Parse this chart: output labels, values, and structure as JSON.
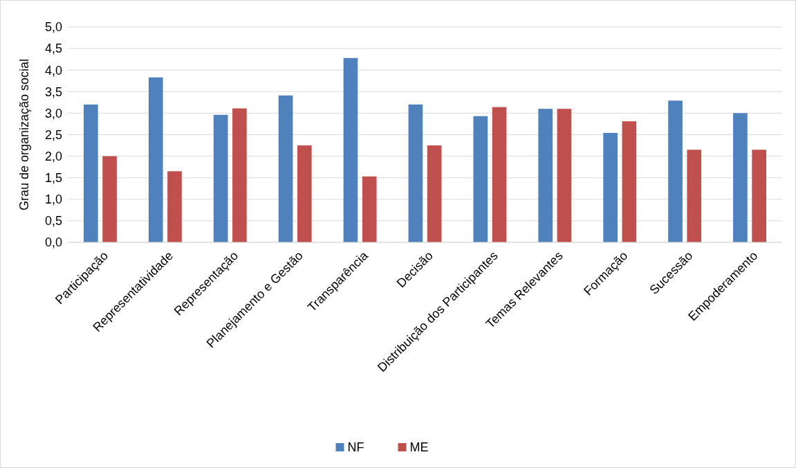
{
  "chart_data": {
    "type": "bar",
    "ylabel": "Grau de organização social",
    "categories": [
      "Participação",
      "Representatividade",
      "Representação",
      "Planejamento e Gestão",
      "Transparência",
      "Decisão",
      "Distribuição dos Participantes",
      "Temas Relevantes",
      "Formação",
      "Sucessão",
      "Empoderamento"
    ],
    "series": [
      {
        "name": "NF",
        "color": "#4f81bd",
        "values": [
          3.2,
          3.83,
          2.96,
          3.41,
          4.28,
          3.2,
          2.93,
          3.1,
          2.54,
          3.29,
          3.0
        ]
      },
      {
        "name": "ME",
        "color": "#c0504d",
        "values": [
          2.0,
          1.65,
          3.11,
          2.25,
          1.53,
          2.25,
          3.14,
          3.1,
          2.81,
          2.15,
          2.15
        ]
      }
    ],
    "ylim": [
      0,
      5
    ],
    "yticks": [
      {
        "value": 0,
        "label": "0,0"
      },
      {
        "value": 0.5,
        "label": "0,5"
      },
      {
        "value": 1,
        "label": "1,0"
      },
      {
        "value": 1.5,
        "label": "1,5"
      },
      {
        "value": 2,
        "label": "2,0"
      },
      {
        "value": 2.5,
        "label": "2,5"
      },
      {
        "value": 3,
        "label": "3,0"
      },
      {
        "value": 3.5,
        "label": "3,5"
      },
      {
        "value": 4,
        "label": "4,0"
      },
      {
        "value": 4.5,
        "label": "4,5"
      },
      {
        "value": 5,
        "label": "5,0"
      }
    ],
    "grid": "y",
    "legend": "bottom"
  }
}
